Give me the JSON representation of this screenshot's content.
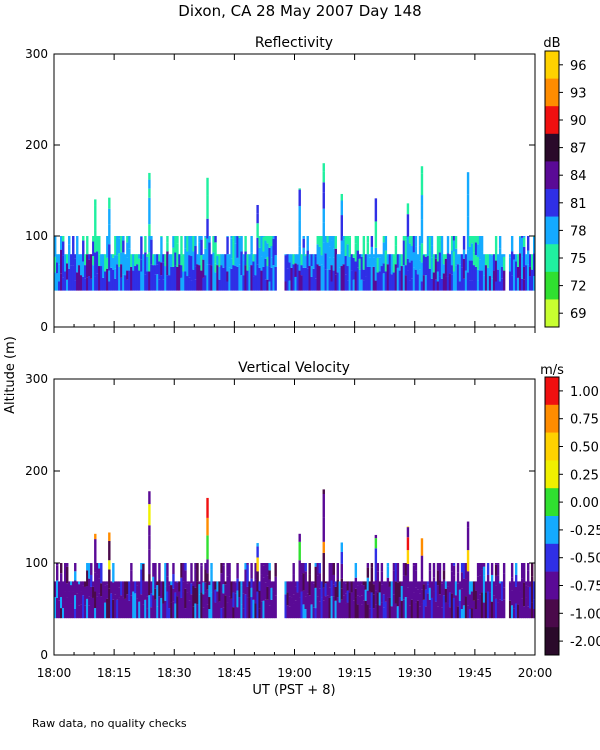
{
  "chart_data": {
    "type": "heatmap",
    "title": "Dixon, CA 28 May 2007  Day 148",
    "ylabel": "Altitude (m)",
    "xlabel": "UT  (PST + 8)",
    "footnote": "Raw data, no quality checks",
    "x_range_hours_ut": [
      18.0,
      20.0
    ],
    "x_tick_labels": [
      "18:00",
      "18:15",
      "18:30",
      "18:45",
      "19:00",
      "19:15",
      "19:30",
      "19:45",
      "20:00"
    ],
    "y_range": [
      0,
      300
    ],
    "y_tick_labels": [
      "0",
      "100",
      "200",
      "300"
    ],
    "panels": [
      {
        "name": "reflectivity",
        "subtitle": "Reflectivity",
        "colorbar_unit": "dB",
        "colorbar_labels": [
          "96",
          "93",
          "90",
          "87",
          "84",
          "81",
          "78",
          "75",
          "72",
          "69"
        ],
        "colorbar_colors": [
          "#ffd200",
          "#ff8c00",
          "#f01010",
          "#2a0a2a",
          "#5a0a96",
          "#2f2fe6",
          "#14aaff",
          "#20f0a0",
          "#30e030",
          "#c8ff30"
        ],
        "echo_base_altitude_m": 40,
        "typical_top_altitude_m": [
          80,
          100
        ],
        "max_top_altitude_m": 180
      },
      {
        "name": "vertical-velocity",
        "subtitle": "Vertical Velocity",
        "colorbar_unit": "m/s",
        "colorbar_labels": [
          "1.00",
          "0.75",
          "0.50",
          "0.25",
          "0.00",
          "-0.25",
          "-0.50",
          "-0.75",
          "-1.00",
          "-2.00"
        ],
        "colorbar_colors": [
          "#f01010",
          "#ff8c00",
          "#ffd200",
          "#f0f000",
          "#30e030",
          "#14aaff",
          "#2f2fe6",
          "#5a0a96",
          "#4a0a4a",
          "#2a0a2a"
        ],
        "echo_base_altitude_m": 40,
        "typical_top_altitude_m": [
          80,
          100
        ],
        "max_top_altitude_m": 180
      }
    ]
  }
}
